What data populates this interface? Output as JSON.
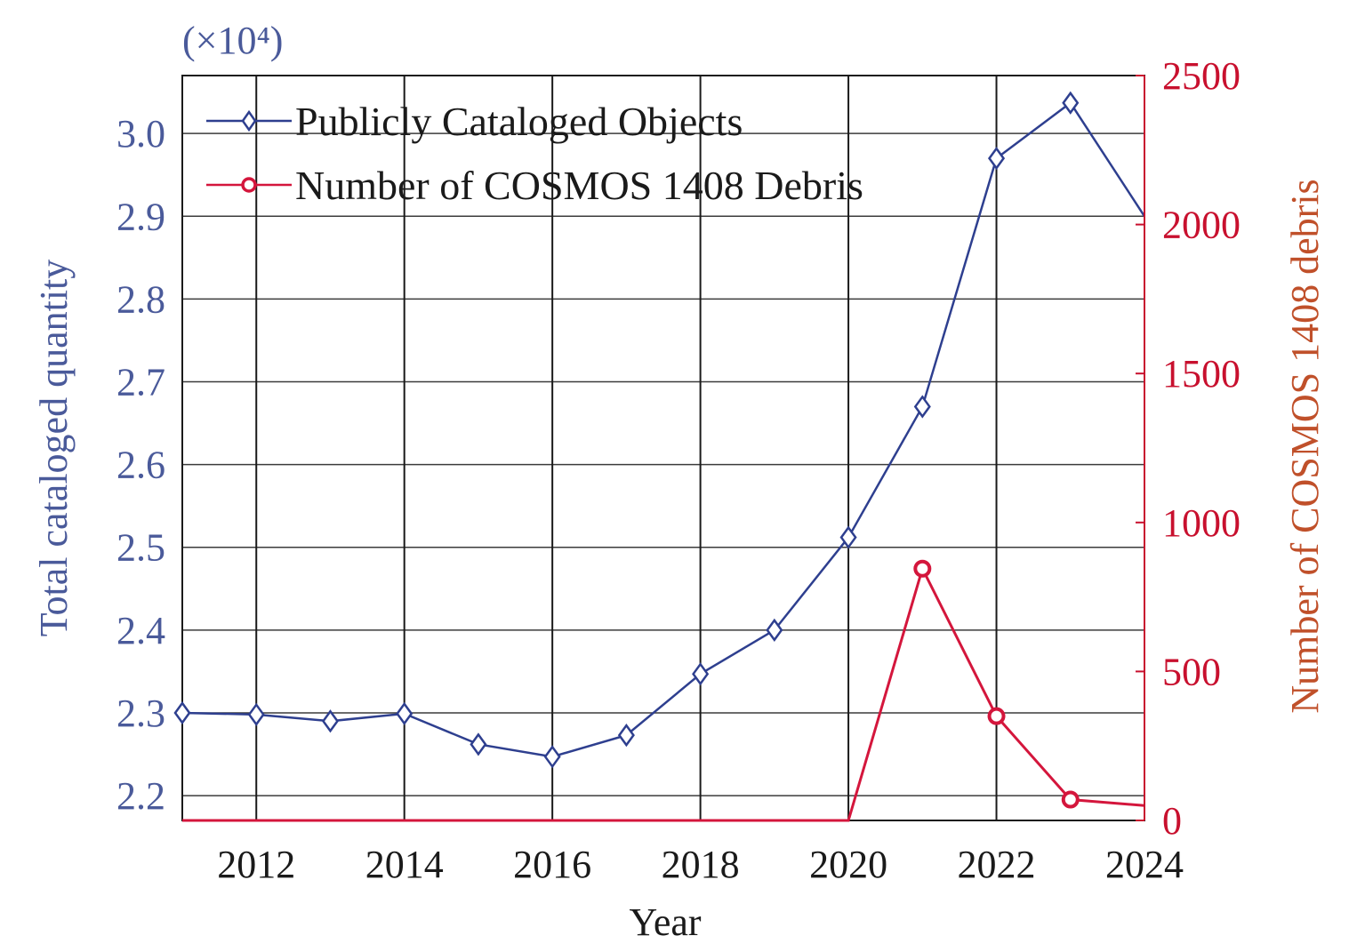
{
  "colors": {
    "left_axis": "#4a5a9a",
    "right_axis": "#c8102e",
    "right_axis_title": "#c0502a",
    "series_blue": "#2e3f8f",
    "series_red": "#d4163c",
    "grid": "#1a1a1a"
  },
  "chart_data": {
    "type": "line",
    "xlabel": "Year",
    "ylabel_left": "Total cataloged quantity",
    "ylabel_right": "Number of COSMOS 1408 debris",
    "left_multiplier": "(×10⁴)",
    "xlim": [
      2011,
      2024
    ],
    "ylim_left": [
      2.17,
      3.07
    ],
    "ylim_right": [
      0,
      2500
    ],
    "x_ticks": [
      "2012",
      "2014",
      "2016",
      "2018",
      "2020",
      "2022",
      "2024"
    ],
    "left_ticks": [
      "2.2",
      "2.3",
      "2.4",
      "2.5",
      "2.6",
      "2.7",
      "2.8",
      "2.9",
      "3.0"
    ],
    "right_ticks": [
      "0",
      "500",
      "1000",
      "1500",
      "2000",
      "2500"
    ],
    "grid": true,
    "legend_position": "top-left",
    "series": [
      {
        "name": "Publicly Cataloged Objects",
        "axis": "left",
        "marker": "diamond",
        "x": [
          2011,
          2012,
          2013,
          2014,
          2015,
          2016,
          2017,
          2018,
          2019,
          2020,
          2021,
          2022,
          2023,
          2024
        ],
        "y": [
          2.3,
          2.298,
          2.29,
          2.299,
          2.262,
          2.247,
          2.273,
          2.347,
          2.4,
          2.512,
          2.67,
          2.97,
          3.037,
          2.9
        ],
        "marker_mask": [
          true,
          true,
          true,
          true,
          true,
          true,
          true,
          true,
          true,
          true,
          true,
          true,
          true,
          false
        ]
      },
      {
        "name": "Number of COSMOS 1408 Debris",
        "axis": "right",
        "marker": "circle",
        "x": [
          2011,
          2020,
          2021,
          2022,
          2023,
          2024
        ],
        "y": [
          0,
          0,
          845,
          350,
          70,
          50
        ],
        "marker_mask": [
          false,
          false,
          true,
          true,
          true,
          false
        ]
      }
    ]
  }
}
